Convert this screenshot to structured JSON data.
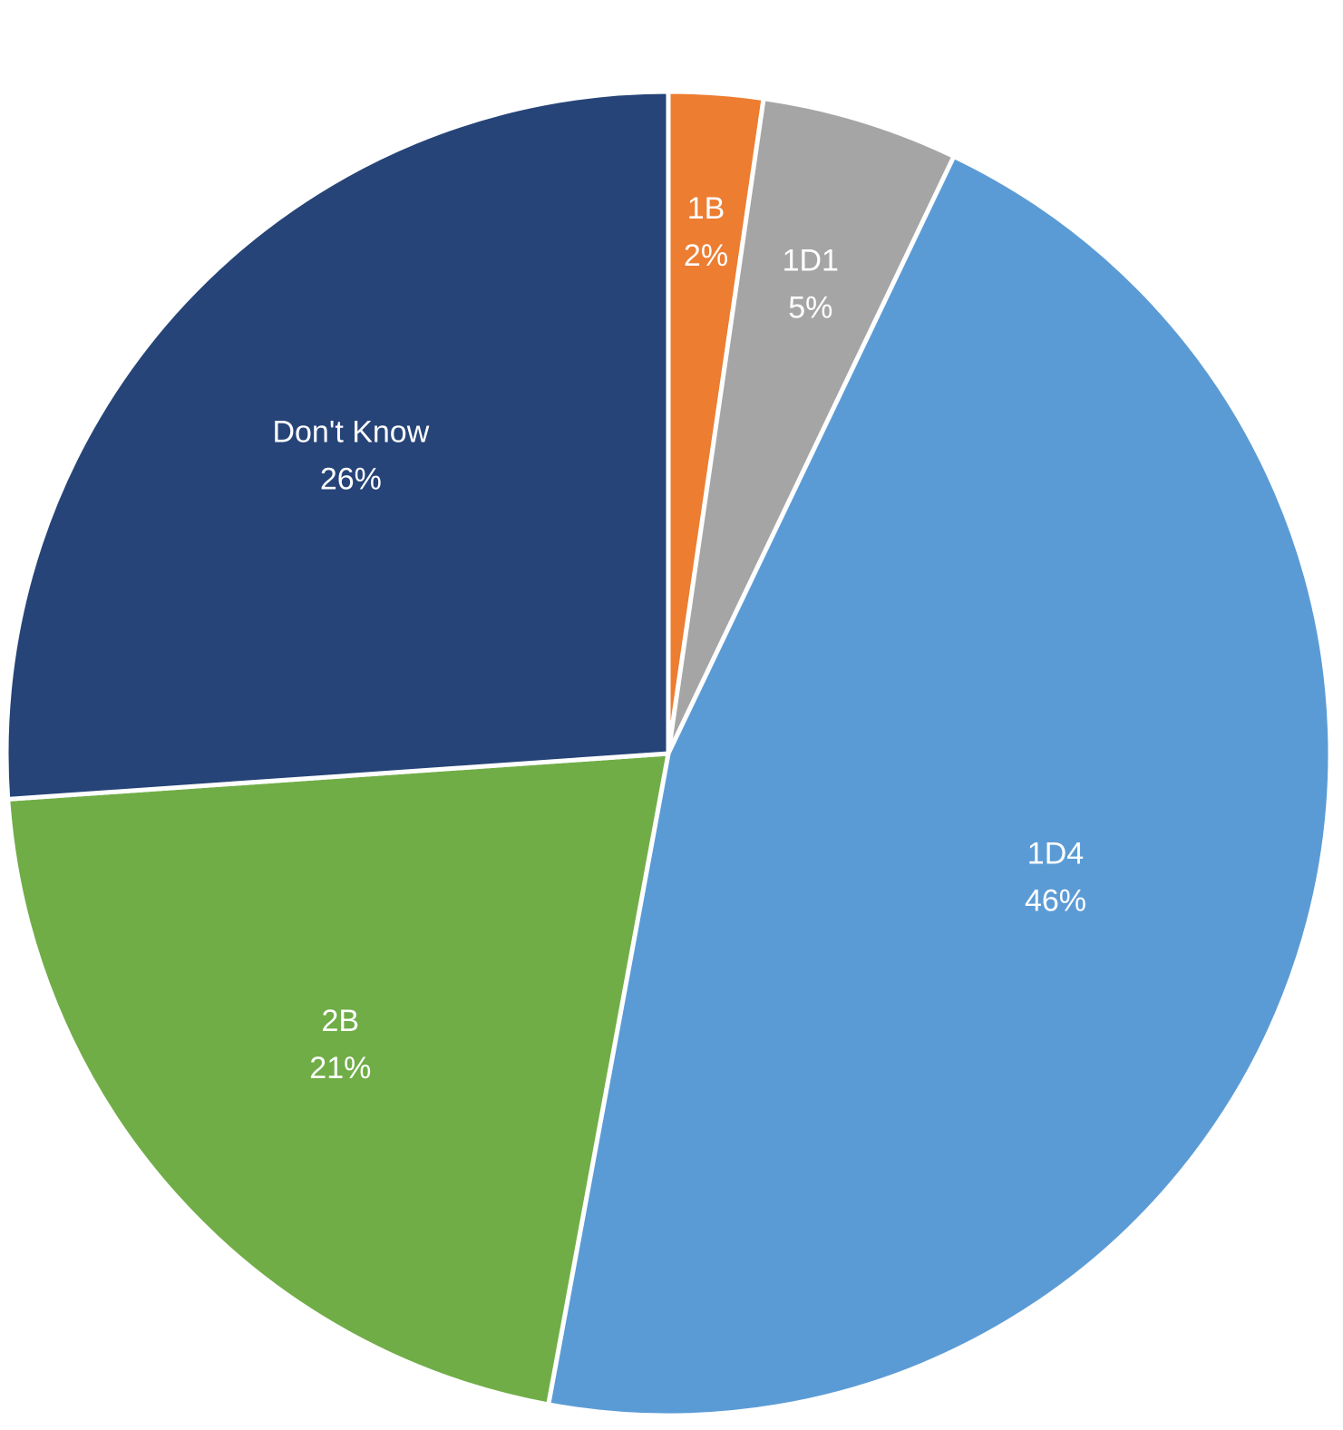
{
  "chart_data": {
    "type": "pie",
    "title": "",
    "categories": [
      "1B",
      "1D1",
      "1D4",
      "2B",
      "Don't Know"
    ],
    "values": [
      2.3,
      4.8,
      45.8,
      21.0,
      26.1
    ],
    "value_labels": [
      "2%",
      "5%",
      "46%",
      "21%",
      "26%"
    ],
    "colors": [
      "#ED7D31",
      "#A5A5A5",
      "#5B9BD5",
      "#70AD47",
      "#264478"
    ],
    "start_angle": "12 o'clock",
    "direction": "clockwise",
    "legend": "none",
    "data_labels": "inside, category name and percentage"
  }
}
